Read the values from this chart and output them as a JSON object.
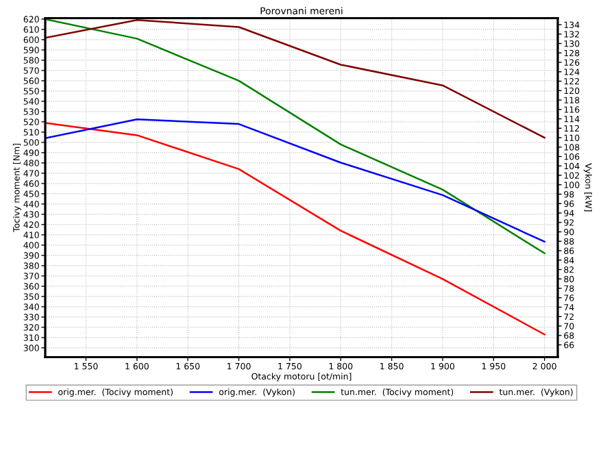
{
  "chart_data": {
    "type": "line",
    "title": "Porovnani mereni",
    "xlabel": "Otacky motoru [ot/min]",
    "ylabel": "Tocivy moment [Nm]",
    "y2label": "Vykon [kW]",
    "x": [
      1510,
      1600,
      1700,
      1800,
      1900,
      2000
    ],
    "xlim": [
      1510,
      2013
    ],
    "xticks": [
      {
        "value": 1550,
        "label": "1 550"
      },
      {
        "value": 1600,
        "label": "1 600"
      },
      {
        "value": 1650,
        "label": "1 650"
      },
      {
        "value": 1700,
        "label": "1 700"
      },
      {
        "value": 1750,
        "label": "1 750"
      },
      {
        "value": 1800,
        "label": "1 800"
      },
      {
        "value": 1850,
        "label": "1 850"
      },
      {
        "value": 1900,
        "label": "1 900"
      },
      {
        "value": 1950,
        "label": "1 950"
      },
      {
        "value": 2000,
        "label": "2 000"
      }
    ],
    "ylim": [
      291,
      621
    ],
    "yticks": [
      300,
      310,
      320,
      330,
      340,
      350,
      360,
      370,
      380,
      390,
      400,
      410,
      420,
      430,
      440,
      450,
      460,
      470,
      480,
      490,
      500,
      510,
      520,
      530,
      540,
      550,
      560,
      570,
      580,
      590,
      600,
      610,
      620
    ],
    "y2lim": [
      63.4,
      135.4
    ],
    "y2ticks": [
      66,
      68,
      70,
      72,
      74,
      76,
      78,
      80,
      82,
      84,
      86,
      88,
      90,
      92,
      94,
      96,
      98,
      100,
      102,
      104,
      106,
      108,
      110,
      112,
      114,
      116,
      118,
      120,
      122,
      124,
      126,
      128,
      130,
      132,
      134
    ],
    "grid": true,
    "legend": "bottom",
    "marker": "none",
    "line_style": "solid",
    "series": [
      {
        "name": "orig.mer.  (Tocivy moment)",
        "color": "#ff0000",
        "values": [
          519,
          507,
          474,
          414,
          367,
          313
        ]
      },
      {
        "name": "orig.mer.  (Vykon)",
        "color": "#0000ff",
        "axis": "y2",
        "values": [
          109.9,
          113.9,
          112.9,
          104.7,
          97.8,
          87.9
        ]
      },
      {
        "name": "tun.mer.  (Tocivy moment)",
        "color": "#008000",
        "values": [
          620,
          601,
          560,
          498,
          454,
          392
        ]
      },
      {
        "name": "tun.mer.  (Vykon)",
        "color": "#800000",
        "axis": "y2",
        "values": [
          131.2,
          135,
          133.5,
          125.5,
          121.1,
          110
        ]
      }
    ]
  }
}
